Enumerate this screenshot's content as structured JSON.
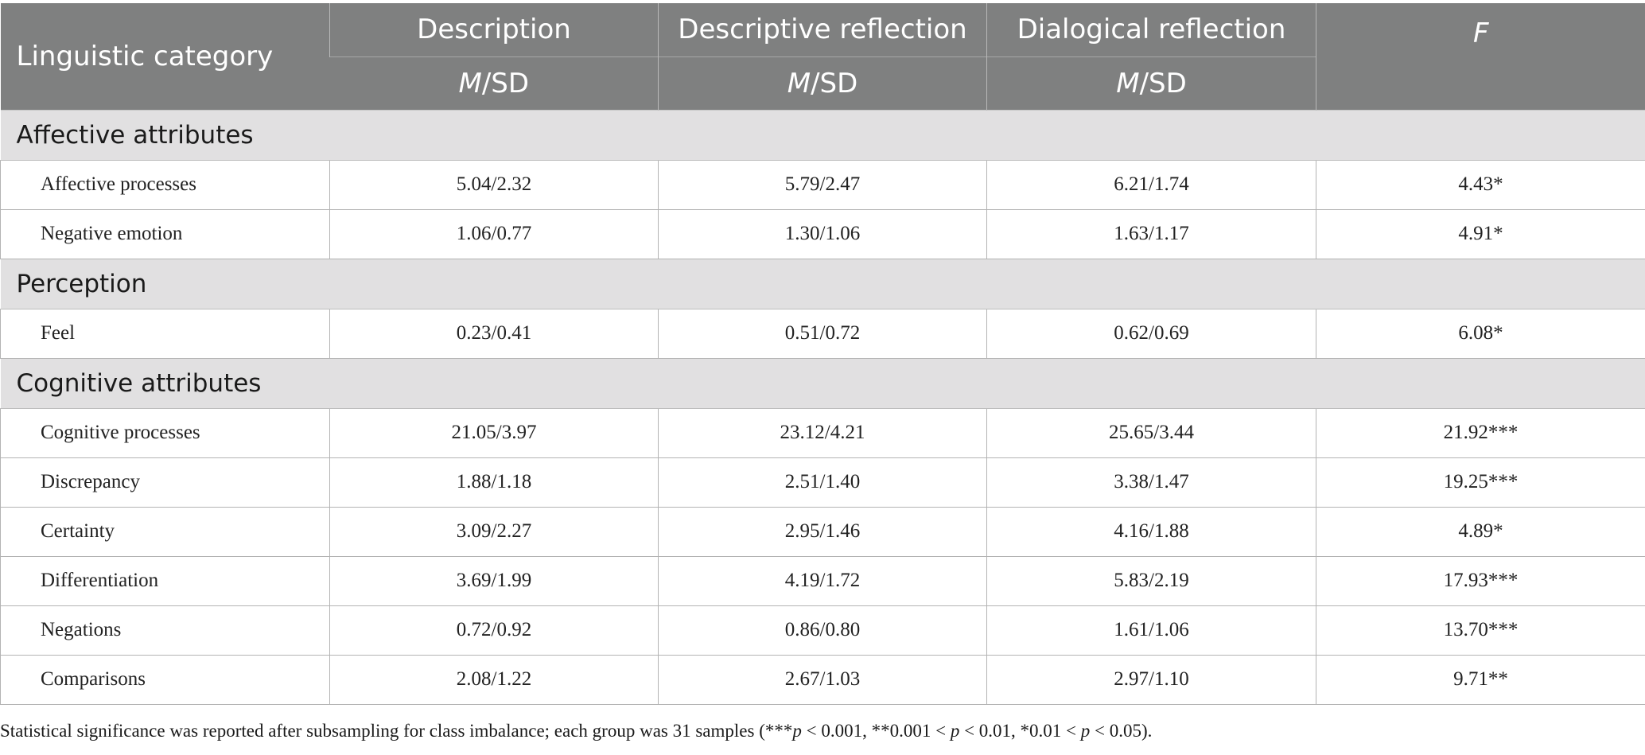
{
  "header": {
    "first_col": "Linguistic category",
    "groups": [
      "Description",
      "Descriptive reflection",
      "Dialogical reflection"
    ],
    "stat_m": "M",
    "stat_sep": "/SD",
    "f_col": "F"
  },
  "sections": [
    {
      "title": "Affective attributes",
      "rows": [
        {
          "label": "Affective processes",
          "description": "5.04/2.32",
          "descriptive_reflection": "5.79/2.47",
          "dialogical_reflection": "6.21/1.74",
          "f": "4.43*"
        },
        {
          "label": "Negative emotion",
          "description": "1.06/0.77",
          "descriptive_reflection": "1.30/1.06",
          "dialogical_reflection": "1.63/1.17",
          "f": "4.91*"
        }
      ]
    },
    {
      "title": "Perception",
      "rows": [
        {
          "label": "Feel",
          "description": "0.23/0.41",
          "descriptive_reflection": "0.51/0.72",
          "dialogical_reflection": "0.62/0.69",
          "f": "6.08*"
        }
      ]
    },
    {
      "title": "Cognitive attributes",
      "rows": [
        {
          "label": "Cognitive processes",
          "description": "21.05/3.97",
          "descriptive_reflection": "23.12/4.21",
          "dialogical_reflection": "25.65/3.44",
          "f": "21.92***"
        },
        {
          "label": "Discrepancy",
          "description": "1.88/1.18",
          "descriptive_reflection": "2.51/1.40",
          "dialogical_reflection": "3.38/1.47",
          "f": "19.25***"
        },
        {
          "label": "Certainty",
          "description": "3.09/2.27",
          "descriptive_reflection": "2.95/1.46",
          "dialogical_reflection": "4.16/1.88",
          "f": "4.89*"
        },
        {
          "label": "Differentiation",
          "description": "3.69/1.99",
          "descriptive_reflection": "4.19/1.72",
          "dialogical_reflection": "5.83/2.19",
          "f": "17.93***"
        },
        {
          "label": "Negations",
          "description": "0.72/0.92",
          "descriptive_reflection": "0.86/0.80",
          "dialogical_reflection": "1.61/1.06",
          "f": "13.70***"
        },
        {
          "label": "Comparisons",
          "description": "2.08/1.22",
          "descriptive_reflection": "2.67/1.03",
          "dialogical_reflection": "2.97/1.10",
          "f": "9.71**"
        }
      ]
    }
  ],
  "footnote": {
    "lead": "Statistical significance was reported after subsampling for class imbalance; each group was 31 samples (***",
    "p1": "p",
    "t1": " < 0.001, **0.001 < ",
    "p2": "p",
    "t2": " < 0.01, *0.01 < ",
    "p3": "p",
    "t3": " < 0.05)."
  },
  "colors": {
    "header_bg": "#7f8080",
    "section_bg": "#e1e0e1",
    "border": "#b3b3b3"
  }
}
